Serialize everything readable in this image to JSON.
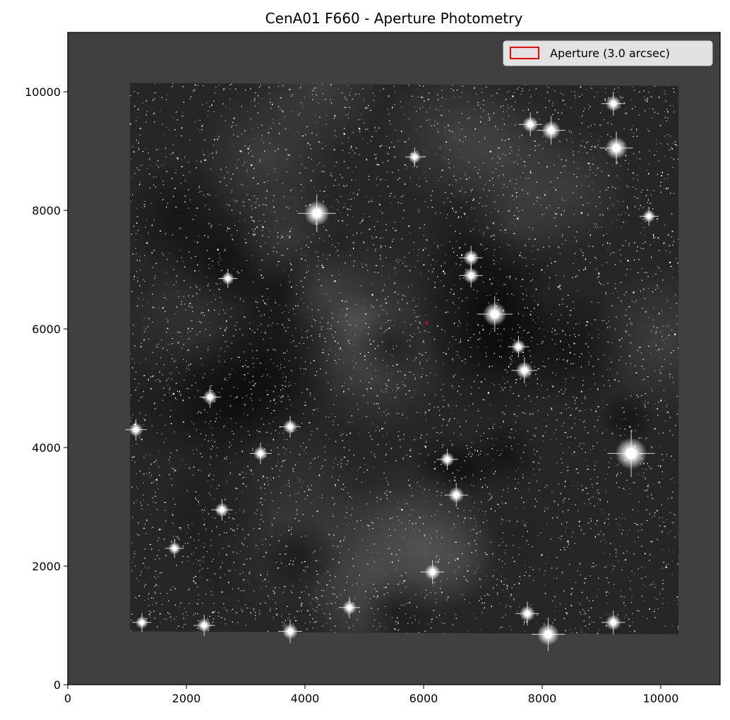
{
  "chart_data": {
    "type": "heatmap",
    "title": "CenA01 F660 - Aperture Photometry",
    "xlabel": "",
    "ylabel": "",
    "xlim": [
      0,
      11000
    ],
    "ylim": [
      0,
      11000
    ],
    "xticks": [
      0,
      2000,
      4000,
      6000,
      8000,
      10000
    ],
    "yticks": [
      0,
      2000,
      4000,
      6000,
      8000,
      10000
    ],
    "xtick_labels": [
      "0",
      "2000",
      "4000",
      "6000",
      "8000",
      "10000"
    ],
    "ytick_labels": [
      "0",
      "2000",
      "4000",
      "6000",
      "8000",
      "10000"
    ],
    "colormap": "gray",
    "background_color": "#404040",
    "image_footprint": [
      [
        1050,
        900
      ],
      [
        1050,
        10150
      ],
      [
        10300,
        10100
      ],
      [
        10300,
        850
      ]
    ],
    "bright_stars": [
      {
        "x": 4200,
        "y": 7950,
        "size": 1.6
      },
      {
        "x": 7200,
        "y": 6250,
        "size": 1.5
      },
      {
        "x": 9500,
        "y": 3900,
        "size": 2.0
      },
      {
        "x": 9250,
        "y": 9050,
        "size": 1.4
      },
      {
        "x": 8150,
        "y": 9350,
        "size": 1.2
      },
      {
        "x": 7800,
        "y": 9450,
        "size": 1.0
      },
      {
        "x": 6800,
        "y": 7200,
        "size": 1.0
      },
      {
        "x": 6800,
        "y": 6900,
        "size": 1.0
      },
      {
        "x": 7700,
        "y": 5300,
        "size": 1.1
      },
      {
        "x": 7600,
        "y": 5700,
        "size": 0.9
      },
      {
        "x": 6550,
        "y": 3200,
        "size": 1.0
      },
      {
        "x": 6400,
        "y": 3800,
        "size": 0.9
      },
      {
        "x": 6150,
        "y": 1900,
        "size": 1.0
      },
      {
        "x": 8100,
        "y": 850,
        "size": 1.4
      },
      {
        "x": 7750,
        "y": 1200,
        "size": 1.0
      },
      {
        "x": 9200,
        "y": 1050,
        "size": 1.0
      },
      {
        "x": 3750,
        "y": 4350,
        "size": 0.9
      },
      {
        "x": 3250,
        "y": 3900,
        "size": 0.9
      },
      {
        "x": 2600,
        "y": 2950,
        "size": 0.9
      },
      {
        "x": 2400,
        "y": 4850,
        "size": 0.9
      },
      {
        "x": 1150,
        "y": 4300,
        "size": 0.9
      },
      {
        "x": 1800,
        "y": 2300,
        "size": 0.8
      },
      {
        "x": 3750,
        "y": 900,
        "size": 1.0
      },
      {
        "x": 2300,
        "y": 1000,
        "size": 0.9
      },
      {
        "x": 5850,
        "y": 8900,
        "size": 0.8
      },
      {
        "x": 9200,
        "y": 9800,
        "size": 1.0
      },
      {
        "x": 9800,
        "y": 7900,
        "size": 0.8
      },
      {
        "x": 4750,
        "y": 1300,
        "size": 0.9
      },
      {
        "x": 1250,
        "y": 1050,
        "size": 0.8
      },
      {
        "x": 2700,
        "y": 6850,
        "size": 0.8
      }
    ],
    "aperture": {
      "x": 6050,
      "y": 6100,
      "radius_arcsec": 3.0,
      "color": "#ff0000"
    },
    "legend": {
      "label": "Aperture (3.0 arcsec)",
      "position": "top-right",
      "edge_color": "#ff0000"
    }
  }
}
